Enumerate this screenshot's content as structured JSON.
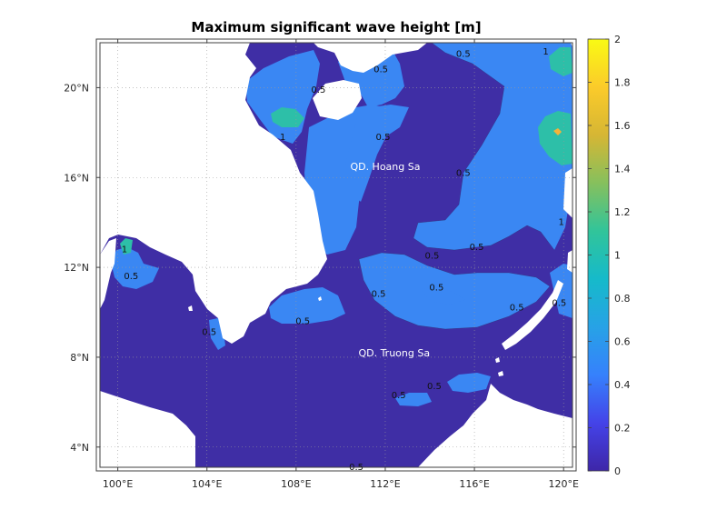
{
  "chart_data": {
    "type": "heatmap",
    "title": "Maximum significant wave height [m]",
    "xlabel": "",
    "ylabel": "",
    "xlim": [
      99.2,
      120.4
    ],
    "ylim": [
      3.1,
      22.0
    ],
    "x_ticks": [
      {
        "value": 100,
        "label": "100°E"
      },
      {
        "value": 104,
        "label": "104°E"
      },
      {
        "value": 108,
        "label": "108°E"
      },
      {
        "value": 112,
        "label": "112°E"
      },
      {
        "value": 116,
        "label": "116°E"
      },
      {
        "value": 120,
        "label": "120°E"
      }
    ],
    "y_ticks": [
      {
        "value": 4,
        "label": "4°N"
      },
      {
        "value": 8,
        "label": "8°N"
      },
      {
        "value": 12,
        "label": "12°N"
      },
      {
        "value": 16,
        "label": "16°N"
      },
      {
        "value": 20,
        "label": "20°N"
      }
    ],
    "grid": true,
    "colorbar": {
      "range": [
        0,
        2
      ],
      "ticks": [
        0,
        0.2,
        0.4,
        0.6,
        0.8,
        1,
        1.2,
        1.4,
        1.6,
        1.8,
        2
      ],
      "labels": [
        "0",
        "0.2",
        "0.4",
        "0.6",
        "0.8",
        "1",
        "1.2",
        "1.4",
        "1.6",
        "1.8",
        "2"
      ],
      "colormap": "parula",
      "stops": [
        "#3e26a8",
        "#4443e8",
        "#3681fc",
        "#27a2e6",
        "#16baca",
        "#31c49a",
        "#86c05d",
        "#d6b634",
        "#fbcb2a",
        "#f9fa14"
      ]
    },
    "fill_levels": {
      "below_0.5": "#3f2ea5",
      "0.5_to_1": "#3a87f3",
      "above_1": "#2dbfa8",
      "peak": "#f3b33a",
      "land": "#ffffff"
    },
    "contour_levels": [
      0.5,
      1
    ],
    "contour_labels": [
      {
        "text": "0.5",
        "lon": 111.8,
        "lat": 20.8
      },
      {
        "text": "0.5",
        "lon": 115.5,
        "lat": 21.5
      },
      {
        "text": "0.5",
        "lon": 109.0,
        "lat": 19.9
      },
      {
        "text": "1",
        "lon": 119.2,
        "lat": 21.6
      },
      {
        "text": "1",
        "lon": 107.4,
        "lat": 17.8
      },
      {
        "text": "0.5",
        "lon": 111.9,
        "lat": 17.8
      },
      {
        "text": "0.5",
        "lon": 115.5,
        "lat": 16.2
      },
      {
        "text": "0.5",
        "lon": 116.1,
        "lat": 12.9
      },
      {
        "text": "0.5",
        "lon": 114.1,
        "lat": 12.5
      },
      {
        "text": "0.5",
        "lon": 114.3,
        "lat": 11.1
      },
      {
        "text": "0.5",
        "lon": 111.7,
        "lat": 10.8
      },
      {
        "text": "0.5",
        "lon": 108.3,
        "lat": 9.6
      },
      {
        "text": "0.5",
        "lon": 117.9,
        "lat": 10.2
      },
      {
        "text": "0.5",
        "lon": 119.8,
        "lat": 10.4
      },
      {
        "text": "0.5",
        "lon": 100.6,
        "lat": 11.6
      },
      {
        "text": "1",
        "lon": 100.3,
        "lat": 12.8
      },
      {
        "text": "0.5",
        "lon": 104.1,
        "lat": 9.1
      },
      {
        "text": "0.5",
        "lon": 114.2,
        "lat": 6.7
      },
      {
        "text": "0.5",
        "lon": 112.6,
        "lat": 6.3
      },
      {
        "text": "0.5",
        "lon": 110.7,
        "lat": 3.1
      },
      {
        "text": "1",
        "lon": 119.9,
        "lat": 14.0
      }
    ],
    "annotations": [
      {
        "text": "QD. Hoang Sa",
        "lon": 112.0,
        "lat": 16.5
      },
      {
        "text": "QD. Truong Sa",
        "lon": 112.4,
        "lat": 8.2
      }
    ]
  }
}
